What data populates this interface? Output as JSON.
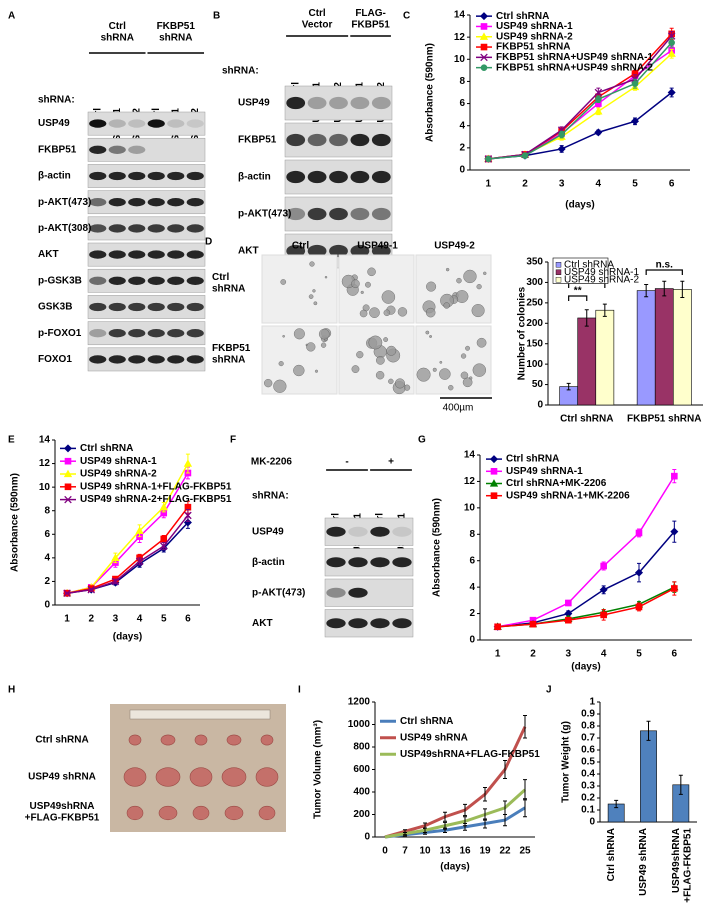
{
  "panel_letters": [
    "A",
    "B",
    "C",
    "D",
    "E",
    "F",
    "G",
    "H",
    "I",
    "J"
  ],
  "blots": [
    {
      "groups": [
        "Ctrl\nshRNA",
        "FKBP51\nshRNA"
      ],
      "row_header": "shRNA:",
      "lanes": [
        "Ctrl",
        "USP49-1",
        "USP49-2",
        "Ctrl",
        "USP49-1",
        "USP49-2"
      ],
      "rows": [
        "USP49",
        "FKBP51",
        "β-actin",
        "p-AKT(473)",
        "p-AKT(308)",
        "AKT",
        "p-GSK3B",
        "GSK3B",
        "p-FOXO1",
        "FOXO1"
      ]
    },
    {
      "groups": [
        "Ctrl\nVector",
        "FLAG-\nFKBP51"
      ],
      "row_header": "shRNA:",
      "lanes": [
        "Ctrl",
        "USP49-1",
        "USP49-2",
        "USP49-1",
        "USP49-2"
      ],
      "rows": [
        "USP49",
        "FKBP51",
        "β-actin",
        "p-AKT(473)",
        "AKT"
      ]
    },
    {
      "treatment": "MK-2206",
      "groups": [
        "-",
        "+"
      ],
      "row_header": "shRNA:",
      "lanes": [
        "Ctrl",
        "USP49-1",
        "Ctrl",
        "USP49-1"
      ],
      "rows": [
        "USP49",
        "β-actin",
        "p-AKT(473)",
        "AKT"
      ]
    }
  ],
  "colony_images": {
    "columns": [
      "Ctrl",
      "USP49-1",
      "USP49-2"
    ],
    "rows": [
      "Ctrl\nshRNA",
      "FKBP51\nshRNA"
    ],
    "scale_bar": "400µm"
  },
  "tumor_photo": {
    "rows": [
      "Ctrl shRNA",
      "USP49 shRNA",
      "USP49shRNA\n+FLAG-FKBP51"
    ]
  },
  "chart_data": [
    {
      "type": "line",
      "ylabel": "Absorbance (590nm)",
      "xlabel": "(days)",
      "categories": [
        1,
        2,
        3,
        4,
        5,
        6
      ],
      "ylim": [
        0,
        14
      ],
      "yticks": [
        0,
        2,
        4,
        6,
        8,
        10,
        12,
        14
      ],
      "grid": false,
      "legend": "upper left",
      "series": [
        {
          "name": "Ctrl shRNA",
          "color": "#000080",
          "marker": "diamond",
          "values": [
            1,
            1.3,
            1.9,
            3.4,
            4.4,
            7.0
          ],
          "errors": [
            0.05,
            0.1,
            0.3,
            0.2,
            0.3,
            0.4
          ]
        },
        {
          "name": "USP49 shRNA-1",
          "color": "#ff00ff",
          "marker": "square",
          "values": [
            1,
            1.4,
            3.3,
            6.0,
            8.5,
            10.8
          ],
          "errors": [
            0.05,
            0.1,
            0.3,
            0.3,
            0.3,
            0.4
          ]
        },
        {
          "name": "USP49 shRNA-2",
          "color": "#ffff00",
          "marker": "triangle",
          "values": [
            1,
            1.4,
            3.0,
            5.3,
            7.5,
            10.5
          ],
          "errors": [
            0.05,
            0.1,
            0.3,
            0.3,
            0.3,
            0.4
          ]
        },
        {
          "name": "FKBP51 shRNA",
          "color": "#ff0000",
          "marker": "square",
          "values": [
            1,
            1.4,
            3.5,
            6.6,
            8.7,
            12.3
          ],
          "errors": [
            0.05,
            0.1,
            0.3,
            0.3,
            0.3,
            0.5
          ]
        },
        {
          "name": "FKBP51 shRNA+USP49 shRNA-1",
          "color": "#800080",
          "marker": "x",
          "values": [
            1,
            1.4,
            3.6,
            7.0,
            8.2,
            12.1
          ],
          "errors": [
            0.05,
            0.1,
            0.3,
            0.4,
            0.4,
            0.4
          ]
        },
        {
          "name": "FKBP51 shRNA+USP49 shRNA-2",
          "color": "#339966",
          "marker": "circle",
          "values": [
            1,
            1.3,
            3.2,
            6.4,
            7.8,
            11.5
          ],
          "errors": [
            0.05,
            0.1,
            0.3,
            0.3,
            0.4,
            0.4
          ]
        }
      ]
    },
    {
      "type": "bar",
      "ylabel": "Number of colonies",
      "categories": [
        "Ctrl shRNA",
        "FKBP51 shRNA"
      ],
      "ylim": [
        0,
        350
      ],
      "yticks": [
        0,
        50,
        100,
        150,
        200,
        250,
        300,
        350
      ],
      "grid": false,
      "legend": "upper left",
      "series": [
        {
          "name": "Ctrl shRNA",
          "color": "#9999ff",
          "values": [
            45,
            280
          ],
          "errors": [
            8,
            15
          ]
        },
        {
          "name": "USP49 shRNA-1",
          "color": "#993366",
          "values": [
            213,
            285
          ],
          "errors": [
            20,
            18
          ]
        },
        {
          "name": "USP49 shRNA-2",
          "color": "#ffffcc",
          "values": [
            232,
            283
          ],
          "errors": [
            15,
            20
          ]
        }
      ],
      "annotations": [
        "**",
        "**",
        "n.s."
      ]
    },
    {
      "type": "line",
      "ylabel": "Absorbance (590nm)",
      "xlabel": "(days)",
      "categories": [
        1,
        2,
        3,
        4,
        5,
        6
      ],
      "ylim": [
        0,
        14
      ],
      "yticks": [
        0,
        2,
        4,
        6,
        8,
        10,
        12,
        14
      ],
      "grid": false,
      "legend": "upper left",
      "series": [
        {
          "name": "Ctrl shRNA",
          "color": "#000080",
          "marker": "diamond",
          "values": [
            1,
            1.3,
            1.9,
            3.5,
            4.8,
            7.0
          ],
          "errors": [
            0.05,
            0.1,
            0.2,
            0.3,
            0.3,
            0.5
          ]
        },
        {
          "name": "USP49 shRNA-1",
          "color": "#ff00ff",
          "marker": "square",
          "values": [
            1,
            1.5,
            3.6,
            5.8,
            7.8,
            11.2
          ],
          "errors": [
            0.05,
            0.1,
            0.4,
            0.5,
            0.4,
            0.5
          ]
        },
        {
          "name": "USP49 shRNA-2",
          "color": "#ffff00",
          "marker": "triangle",
          "values": [
            1,
            1.5,
            4.0,
            6.3,
            8.3,
            12.0
          ],
          "errors": [
            0.05,
            0.1,
            0.4,
            0.5,
            0.4,
            0.8
          ]
        },
        {
          "name": "USP49 shRNA-1+FLAG-FKBP51",
          "color": "#ff0000",
          "marker": "square",
          "values": [
            1,
            1.4,
            2.2,
            4.0,
            5.6,
            8.3
          ],
          "errors": [
            0.05,
            0.1,
            0.2,
            0.3,
            0.3,
            0.5
          ]
        },
        {
          "name": "USP49 shRNA-2+FLAG-FKBP51",
          "color": "#800080",
          "marker": "x",
          "values": [
            1,
            1.3,
            2.0,
            3.7,
            5.0,
            7.6
          ],
          "errors": [
            0.05,
            0.1,
            0.2,
            0.3,
            0.3,
            0.5
          ]
        }
      ]
    },
    {
      "type": "line",
      "ylabel": "Absorbance (590nm)",
      "xlabel": "(days)",
      "categories": [
        1,
        2,
        3,
        4,
        5,
        6
      ],
      "ylim": [
        0,
        14
      ],
      "yticks": [
        0,
        2,
        4,
        6,
        8,
        10,
        12,
        14
      ],
      "grid": false,
      "legend": "upper left",
      "series": [
        {
          "name": "Ctrl shRNA",
          "color": "#000080",
          "marker": "diamond",
          "values": [
            1,
            1.3,
            2.0,
            3.8,
            5.1,
            8.2
          ],
          "errors": [
            0.05,
            0.1,
            0.2,
            0.3,
            0.7,
            0.8
          ]
        },
        {
          "name": "USP49 shRNA-1",
          "color": "#ff00ff",
          "marker": "square",
          "values": [
            1,
            1.5,
            2.8,
            5.6,
            8.1,
            12.4
          ],
          "errors": [
            0.05,
            0.1,
            0.2,
            0.3,
            0.3,
            0.5
          ]
        },
        {
          "name": "Ctrl shRNA+MK-2206",
          "color": "#008000",
          "marker": "triangle",
          "values": [
            1,
            1.2,
            1.6,
            2.1,
            2.7,
            4.0
          ],
          "errors": [
            0.05,
            0.1,
            0.2,
            0.2,
            0.2,
            0.4
          ]
        },
        {
          "name": "USP49 shRNA-1+MK-2206",
          "color": "#ff0000",
          "marker": "square",
          "values": [
            1,
            1.2,
            1.5,
            1.9,
            2.5,
            3.9
          ],
          "errors": [
            0.05,
            0.1,
            0.2,
            0.4,
            0.3,
            0.5
          ]
        }
      ]
    },
    {
      "type": "line",
      "ylabel": "Tumor Volume (mm³)",
      "xlabel": "(days)",
      "categories": [
        0,
        7,
        10,
        13,
        16,
        19,
        22,
        25
      ],
      "ylim": [
        0,
        1200
      ],
      "yticks": [
        0,
        200,
        400,
        600,
        800,
        1000,
        1200
      ],
      "grid": false,
      "legend": "upper left",
      "series": [
        {
          "name": "Ctrl shRNA",
          "color": "#4a7ebb",
          "values": [
            0,
            20,
            40,
            60,
            90,
            120,
            150,
            260
          ],
          "errors": [
            0,
            10,
            15,
            20,
            30,
            40,
            50,
            80
          ]
        },
        {
          "name": "USP49 shRNA",
          "color": "#c0504d",
          "values": [
            0,
            50,
            100,
            180,
            240,
            380,
            600,
            980
          ],
          "errors": [
            0,
            15,
            25,
            40,
            50,
            60,
            80,
            100
          ]
        },
        {
          "name": "USP49shRNA+FLAG-FKBP51",
          "color": "#9bbb59",
          "values": [
            0,
            30,
            60,
            100,
            140,
            200,
            260,
            420
          ],
          "errors": [
            0,
            10,
            20,
            30,
            40,
            50,
            60,
            90
          ]
        }
      ]
    },
    {
      "type": "bar",
      "ylabel": "Tumor Weight (g)",
      "categories": [
        "Ctrl shRNA",
        "USP49 shRNA",
        "USP49shRNA\n+FLAG-FKBP51"
      ],
      "ylim": [
        0,
        1
      ],
      "yticks": [
        0,
        0.1,
        0.2,
        0.3,
        0.4,
        0.5,
        0.6,
        0.7,
        0.8,
        0.9,
        1
      ],
      "grid": false,
      "color": "#4f81bd",
      "values": [
        0.15,
        0.76,
        0.31
      ],
      "errors": [
        0.03,
        0.08,
        0.08
      ]
    }
  ]
}
